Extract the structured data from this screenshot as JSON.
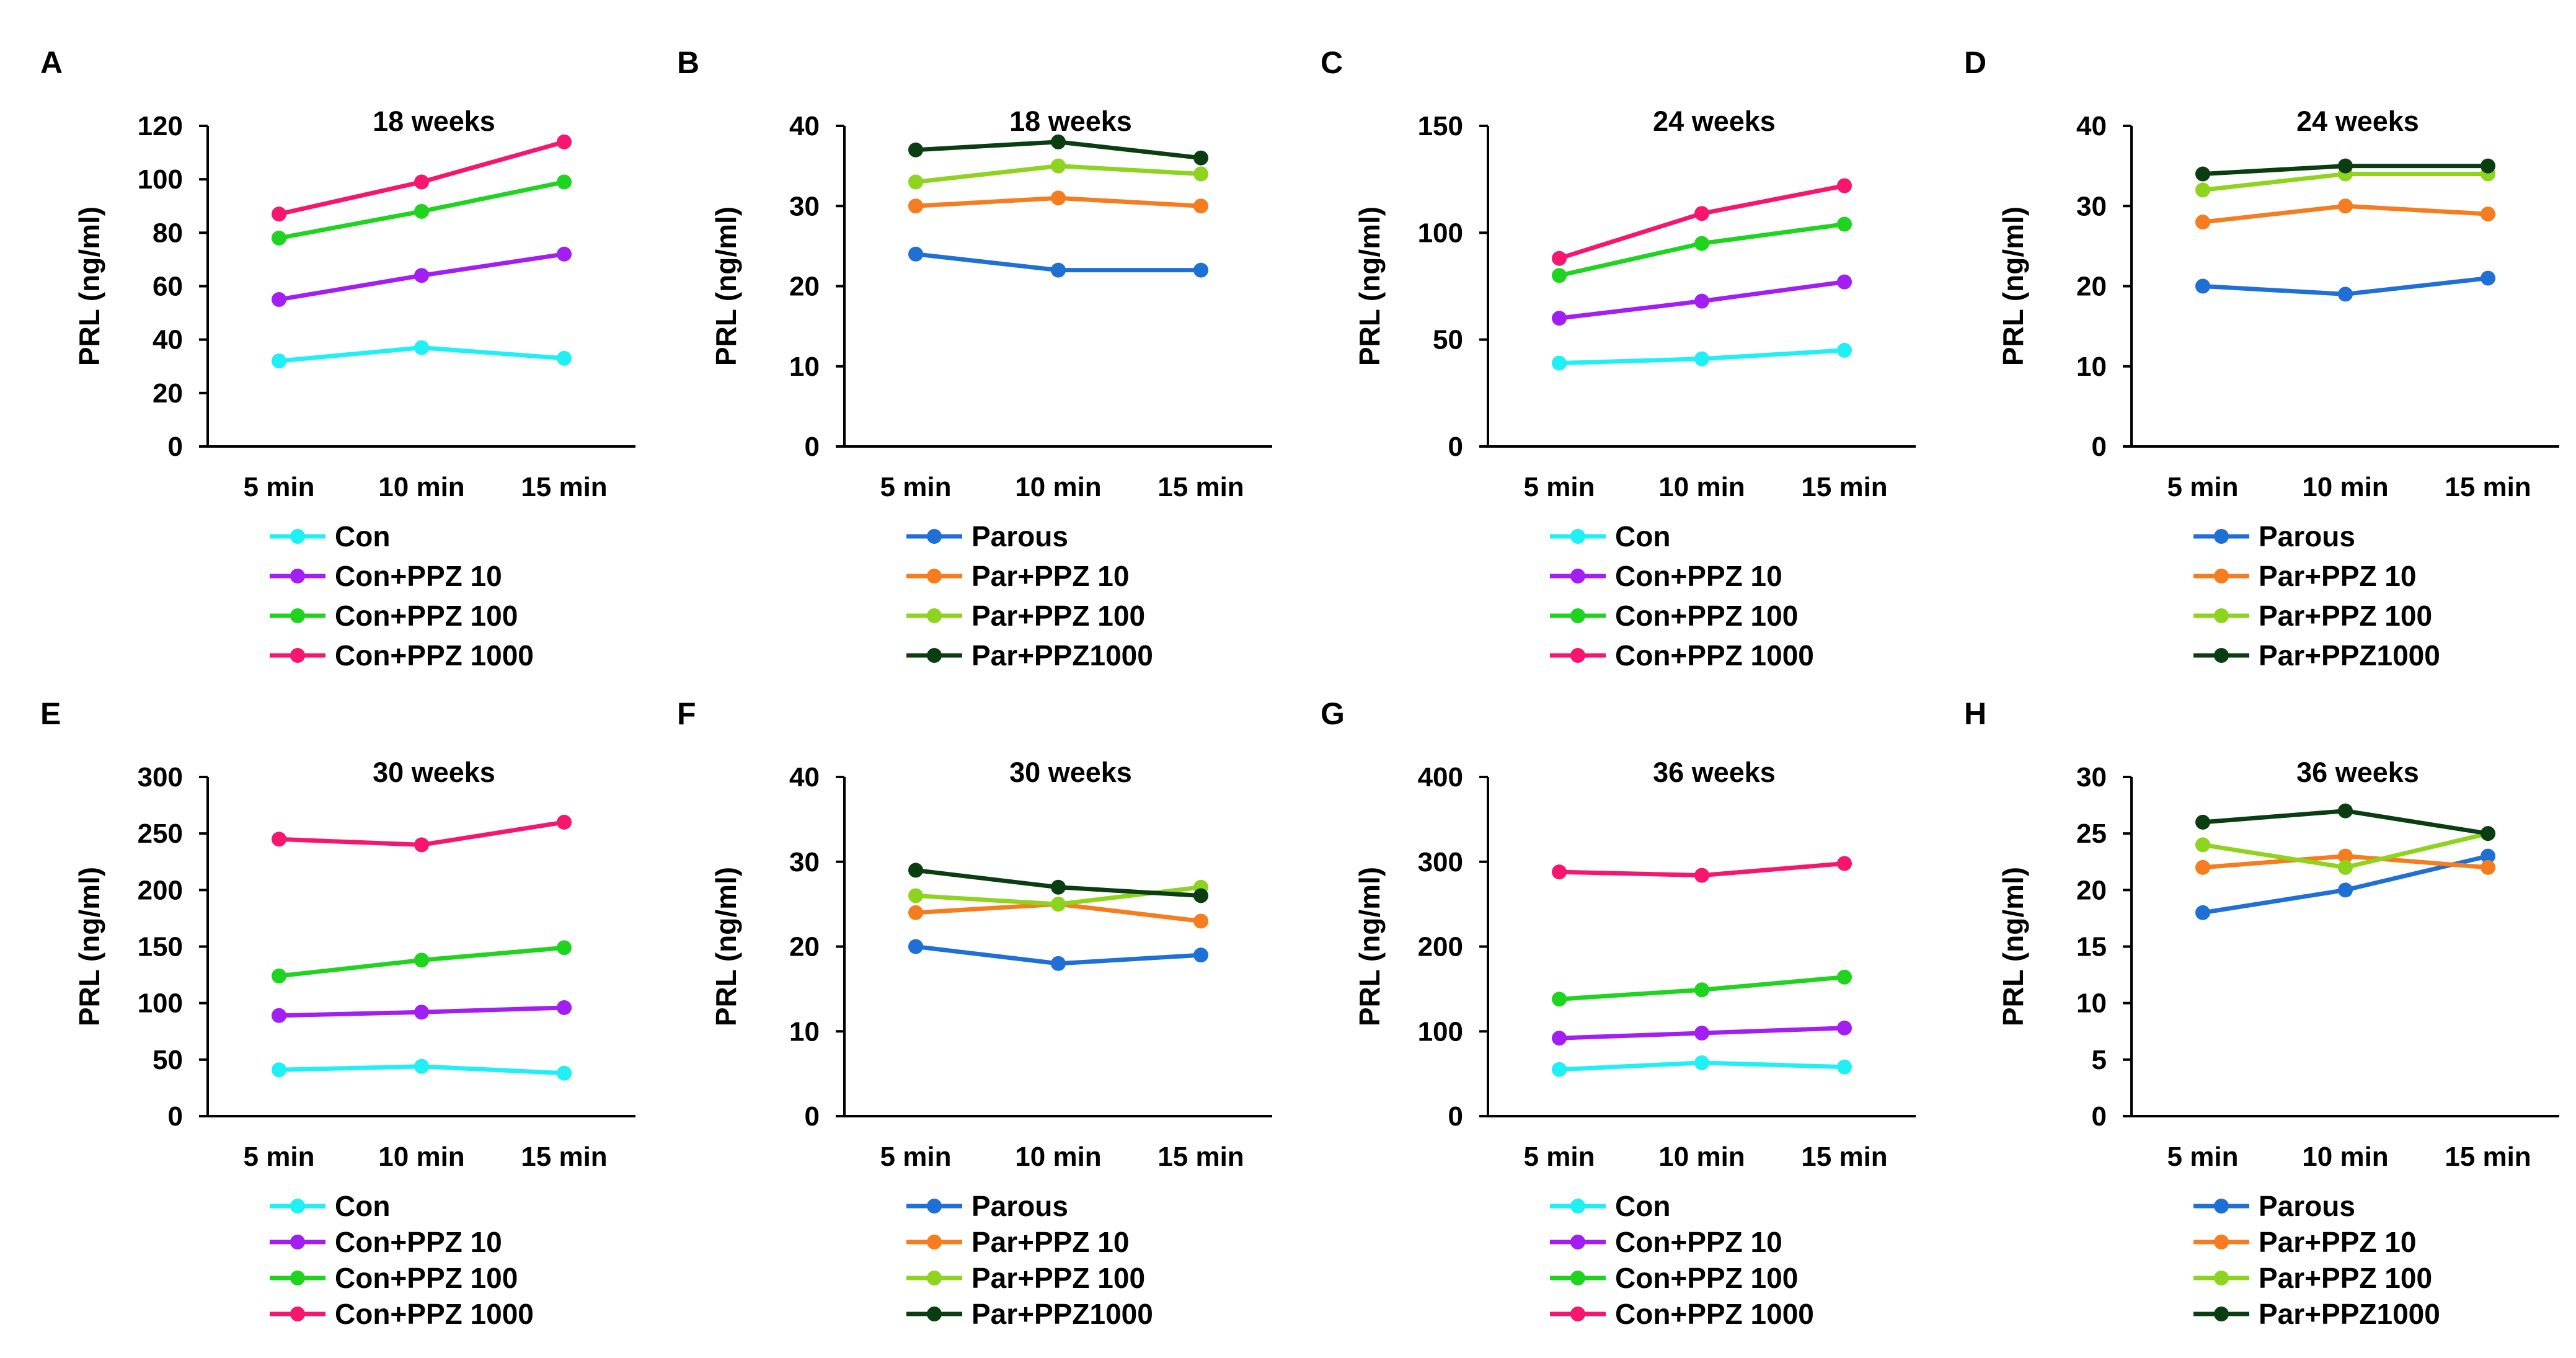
{
  "colors": {
    "con": "#1ff0f5",
    "con_ppz10": "#a21ef2",
    "con_ppz100": "#1ed41e",
    "con_ppz1000": "#f7156e",
    "parous": "#1e6fd6",
    "par_ppz10": "#f57d1f",
    "par_ppz100": "#8ed41e",
    "par_ppz1000": "#0b3d12"
  },
  "chart_data": [
    {
      "panel": "A",
      "type": "line",
      "title": "18 weeks",
      "xlabel": "",
      "ylabel": "PRL (ng/ml)",
      "categories": [
        "5 min",
        "10 min",
        "15 min"
      ],
      "ylim": [
        0,
        120
      ],
      "yticks": [
        0,
        20,
        40,
        60,
        80,
        100,
        120
      ],
      "legend_position": "below",
      "series": [
        {
          "name": "Con",
          "color": "#1ff0f5",
          "values": [
            32,
            37,
            33
          ]
        },
        {
          "name": "Con+PPZ 10",
          "color": "#a21ef2",
          "values": [
            55,
            64,
            72
          ]
        },
        {
          "name": "Con+PPZ 100",
          "color": "#1ed41e",
          "values": [
            78,
            88,
            99
          ]
        },
        {
          "name": "Con+PPZ 1000",
          "color": "#f7156e",
          "values": [
            87,
            99,
            114
          ]
        }
      ]
    },
    {
      "panel": "B",
      "type": "line",
      "title": "18 weeks",
      "xlabel": "",
      "ylabel": "PRL (ng/ml)",
      "categories": [
        "5 min",
        "10 min",
        "15 min"
      ],
      "ylim": [
        0,
        40
      ],
      "yticks": [
        0,
        10,
        20,
        30,
        40
      ],
      "legend_position": "below",
      "series": [
        {
          "name": "Parous",
          "color": "#1e6fd6",
          "values": [
            24,
            22,
            22
          ]
        },
        {
          "name": "Par+PPZ 10",
          "color": "#f57d1f",
          "values": [
            30,
            31,
            30
          ]
        },
        {
          "name": "Par+PPZ 100",
          "color": "#8ed41e",
          "values": [
            33,
            35,
            34
          ]
        },
        {
          "name": "Par+PPZ1000",
          "color": "#0b3d12",
          "values": [
            37,
            38,
            36
          ]
        }
      ]
    },
    {
      "panel": "C",
      "type": "line",
      "title": "24 weeks",
      "xlabel": "",
      "ylabel": "PRL (ng/ml)",
      "categories": [
        "5 min",
        "10 min",
        "15 min"
      ],
      "ylim": [
        0,
        150
      ],
      "yticks": [
        0,
        50,
        100,
        150
      ],
      "legend_position": "below",
      "series": [
        {
          "name": "Con",
          "color": "#1ff0f5",
          "values": [
            39,
            41,
            45
          ]
        },
        {
          "name": "Con+PPZ 10",
          "color": "#a21ef2",
          "values": [
            60,
            68,
            77
          ]
        },
        {
          "name": "Con+PPZ 100",
          "color": "#1ed41e",
          "values": [
            80,
            95,
            104
          ]
        },
        {
          "name": "Con+PPZ 1000",
          "color": "#f7156e",
          "values": [
            88,
            109,
            122
          ]
        }
      ]
    },
    {
      "panel": "D",
      "type": "line",
      "title": "24 weeks",
      "xlabel": "",
      "ylabel": "PRL (ng/ml)",
      "categories": [
        "5 min",
        "10 min",
        "15 min"
      ],
      "ylim": [
        0,
        40
      ],
      "yticks": [
        0,
        10,
        20,
        30,
        40
      ],
      "legend_position": "below",
      "series": [
        {
          "name": "Parous",
          "color": "#1e6fd6",
          "values": [
            20,
            19,
            21
          ]
        },
        {
          "name": "Par+PPZ 10",
          "color": "#f57d1f",
          "values": [
            28,
            30,
            29
          ]
        },
        {
          "name": "Par+PPZ 100",
          "color": "#8ed41e",
          "values": [
            32,
            34,
            34
          ]
        },
        {
          "name": "Par+PPZ1000",
          "color": "#0b3d12",
          "values": [
            34,
            35,
            35
          ]
        }
      ]
    },
    {
      "panel": "E",
      "type": "line",
      "title": "30 weeks",
      "xlabel": "",
      "ylabel": "PRL (ng/ml)",
      "categories": [
        "5 min",
        "10 min",
        "15 min"
      ],
      "ylim": [
        0,
        300
      ],
      "yticks": [
        0,
        50,
        100,
        150,
        200,
        250,
        300
      ],
      "legend_position": "below",
      "series": [
        {
          "name": "Con",
          "color": "#1ff0f5",
          "values": [
            41,
            44,
            38
          ]
        },
        {
          "name": "Con+PPZ 10",
          "color": "#a21ef2",
          "values": [
            89,
            92,
            96
          ]
        },
        {
          "name": "Con+PPZ 100",
          "color": "#1ed41e",
          "values": [
            124,
            138,
            149
          ]
        },
        {
          "name": "Con+PPZ 1000",
          "color": "#f7156e",
          "values": [
            245,
            240,
            260
          ]
        }
      ]
    },
    {
      "panel": "F",
      "type": "line",
      "title": "30 weeks",
      "xlabel": "",
      "ylabel": "PRL (ng/ml)",
      "categories": [
        "5 min",
        "10 min",
        "15 min"
      ],
      "ylim": [
        0,
        40
      ],
      "yticks": [
        0,
        10,
        20,
        30,
        40
      ],
      "legend_position": "below",
      "series": [
        {
          "name": "Parous",
          "color": "#1e6fd6",
          "values": [
            20,
            18,
            19
          ]
        },
        {
          "name": "Par+PPZ 10",
          "color": "#f57d1f",
          "values": [
            24,
            25,
            23
          ]
        },
        {
          "name": "Par+PPZ 100",
          "color": "#8ed41e",
          "values": [
            26,
            25,
            27
          ]
        },
        {
          "name": "Par+PPZ1000",
          "color": "#0b3d12",
          "values": [
            29,
            27,
            26
          ]
        }
      ]
    },
    {
      "panel": "G",
      "type": "line",
      "title": "36 weeks",
      "xlabel": "",
      "ylabel": "PRL (ng/ml)",
      "categories": [
        "5 min",
        "10 min",
        "15 min"
      ],
      "ylim": [
        0,
        400
      ],
      "yticks": [
        0,
        100,
        200,
        300,
        400
      ],
      "legend_position": "below",
      "series": [
        {
          "name": "Con",
          "color": "#1ff0f5",
          "values": [
            55,
            63,
            58
          ]
        },
        {
          "name": "Con+PPZ 10",
          "color": "#a21ef2",
          "values": [
            92,
            98,
            104
          ]
        },
        {
          "name": "Con+PPZ 100",
          "color": "#1ed41e",
          "values": [
            138,
            149,
            164
          ]
        },
        {
          "name": "Con+PPZ 1000",
          "color": "#f7156e",
          "values": [
            288,
            284,
            298
          ]
        }
      ]
    },
    {
      "panel": "H",
      "type": "line",
      "title": "36 weeks",
      "xlabel": "",
      "ylabel": "PRL (ng/ml)",
      "categories": [
        "5 min",
        "10 min",
        "15 min"
      ],
      "ylim": [
        0,
        30
      ],
      "yticks": [
        0,
        5,
        10,
        15,
        20,
        25,
        30
      ],
      "legend_position": "below",
      "series": [
        {
          "name": "Parous",
          "color": "#1e6fd6",
          "values": [
            18,
            20,
            23
          ]
        },
        {
          "name": "Par+PPZ 10",
          "color": "#f57d1f",
          "values": [
            22,
            23,
            22
          ]
        },
        {
          "name": "Par+PPZ 100",
          "color": "#8ed41e",
          "values": [
            24,
            22,
            25
          ]
        },
        {
          "name": "Par+PPZ1000",
          "color": "#0b3d12",
          "values": [
            26,
            27,
            25
          ]
        }
      ]
    }
  ]
}
